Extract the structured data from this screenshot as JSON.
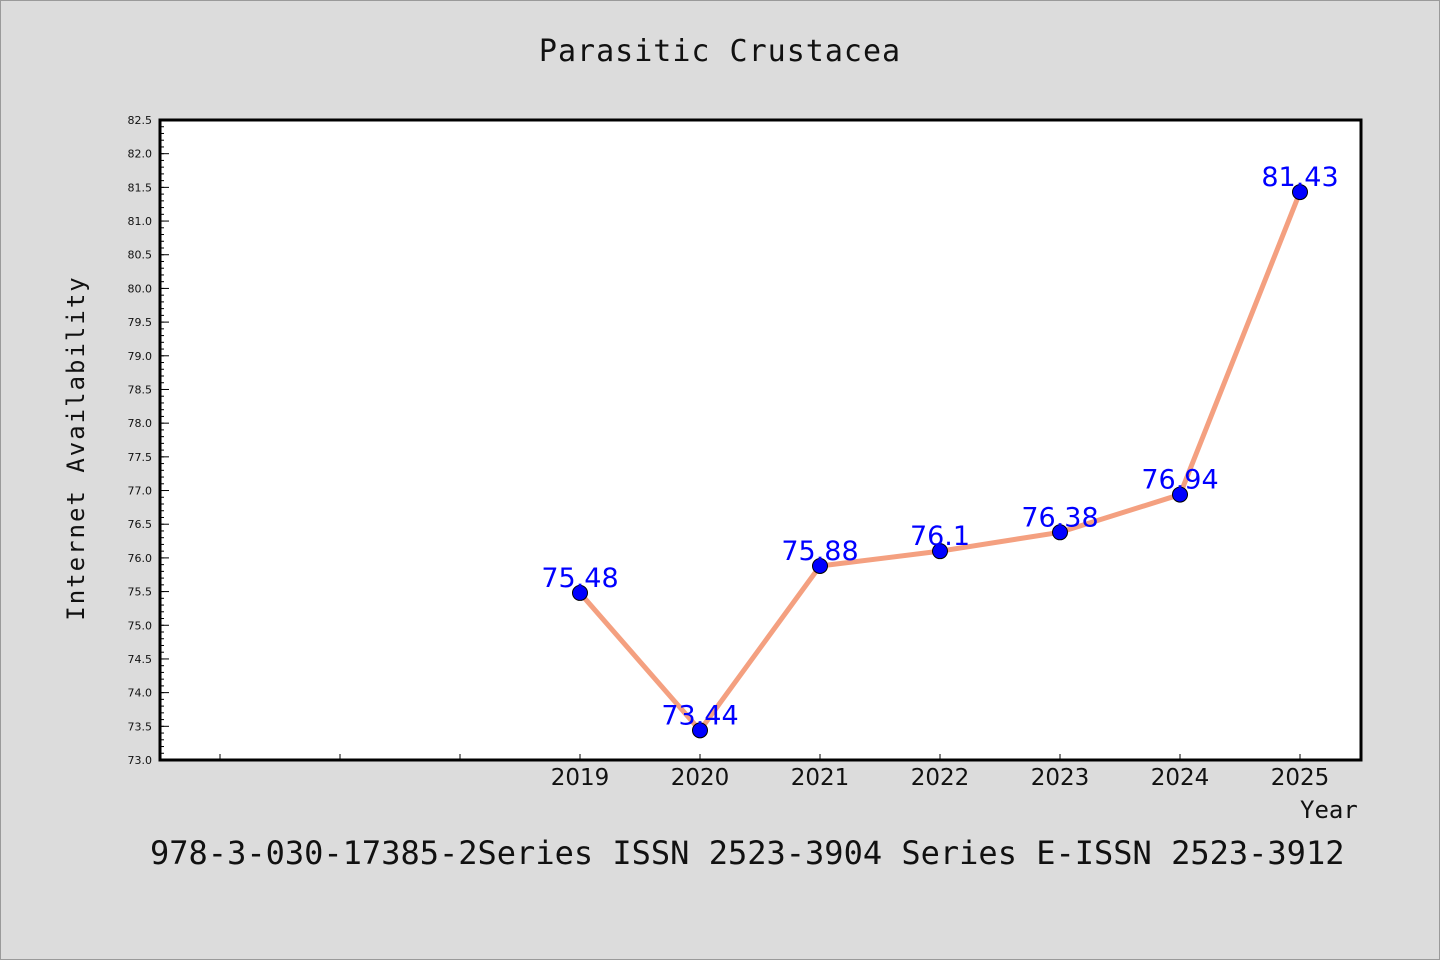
{
  "chart_data": {
    "type": "line",
    "title": "Parasitic Crustacea",
    "xlabel": "Year",
    "ylabel": "Internet Availability",
    "categories": [
      "2019",
      "2020",
      "2021",
      "2022",
      "2023",
      "2024",
      "2025"
    ],
    "series": [
      {
        "values": [
          75.48,
          73.44,
          75.88,
          76.1,
          76.38,
          76.94,
          81.43
        ]
      }
    ],
    "data_labels": [
      "75.48",
      "73.44",
      "75.88",
      "76.1",
      "76.38",
      "76.94",
      "81.43"
    ],
    "ylim": [
      73.0,
      82.5
    ],
    "yticks": [
      "73.0",
      "73.5",
      "74.0",
      "74.5",
      "75.0",
      "75.5",
      "76.0",
      "76.5",
      "77.0",
      "77.5",
      "78.0",
      "78.5",
      "79.0",
      "79.5",
      "80.0",
      "80.5",
      "81.0",
      "81.5",
      "82.0",
      "82.5"
    ],
    "grid": false,
    "colors": {
      "line": "#f4a080",
      "marker": "#0000ff",
      "label": "#0000ff",
      "background": "#dcdcdc"
    }
  },
  "footer": "978-3-030-17385-2Series ISSN 2523-3904 Series E-ISSN 2523-3912"
}
